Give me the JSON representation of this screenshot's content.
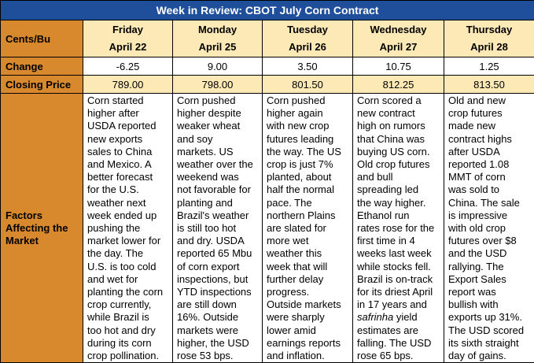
{
  "title": "Week in Review: CBOT July Corn Contract",
  "row_labels": {
    "unit": "Cents/Bu",
    "change": "Change",
    "closing": "Closing Price",
    "factors": "Factors\nAffecting the\nMarket"
  },
  "days": [
    {
      "day": "Friday",
      "date": "April 22",
      "change": "-6.25",
      "closing": "789.00",
      "factors": "Corn started\nhigher after\nUSDA reported\nnew exports\nsales to China\nand Mexico. A\nbetter forecast\nfor the U.S.\nweather next\nweek ended up\npushing the\nmarket lower for\nthe day. The\nU.S. is too cold\nand wet for\nplanting the corn\ncrop currently,\nwhile Brazil is\ntoo hot and dry\nduring its corn\ncrop pollination."
    },
    {
      "day": "Monday",
      "date": "April 25",
      "change": "9.00",
      "closing": "798.00",
      "factors": "Corn pushed\nhigher despite\nweaker wheat\nand soy\nmarkets. US\nweather over the\nweekend was\nnot favorable for\nplanting and\nBrazil's weather\nis still too hot\nand dry. USDA\nreported 65 Mbu\nof corn export\ninspections, but\nYTD inspections\nare still down\n16%. Outside\nmarkets were\nhigher, the USD\nrose 53 bps."
    },
    {
      "day": "Tuesday",
      "date": "April 26",
      "change": "3.50",
      "closing": "801.50",
      "factors": "Corn pushed\nhigher again\nwith new crop\nfutures leading\nthe way. The US\ncrop is just 7%\nplanted, about\nhalf the normal\npace. The\nnorthern Plains\nare slated for\nmore wet\nweather this\nweek that will\nfurther delay\nprogress.\nOutside markets\nwere sharply\nlower amid\nearnings reports\nand inflation."
    },
    {
      "day": "Wednesday",
      "date": "April 27",
      "change": "10.75",
      "closing": "812.25",
      "factors_before": "Corn scored a\nnew contract\nhigh on rumors\nthat China was\nbuying US corn.\nOld crop futures\nand bull\nspreading led\nthe way higher.\nEthanol run\nrates rose for the\nfirst time in 4\nweeks last week\nwhile stocks fell.\nBrazil is on-track\nfor its driest April\nin 17 years and\n",
      "factors_italic": "safrinha",
      "factors_after": " yield\nestimates are\nfalling. The USD\nrose 65 bps."
    },
    {
      "day": "Thursday",
      "date": "April 28",
      "change": "1.25",
      "closing": "813.50",
      "factors": "Old and new\ncrop futures\nmade new\ncontract highs\nafter USDA\nreported 1.08\nMMT of corn\nwas sold to\nChina. The sale\nis impressive\nwith old crop\nfutures over $8\nand the USD\nrallying. The\nExport Sales\nreport was\nbullish with\nexports up 31%.\nThe USD scored\nits sixth straight\nday of gains."
    }
  ],
  "colors": {
    "title_bg": "#1f4e9a",
    "label_bg": "#d8892e",
    "highlight_bg": "#fde9b5"
  }
}
